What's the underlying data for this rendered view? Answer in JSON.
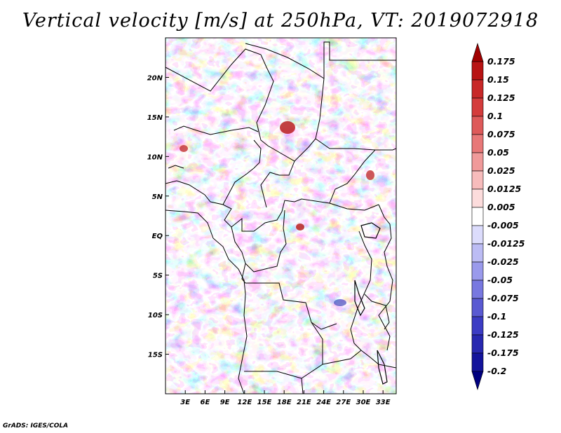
{
  "title": "Vertical velocity [m/s] at 250hPa, VT: 2019072918",
  "credit": "GrADS: IGES/COLA",
  "map": {
    "region": "Central Africa",
    "lon_range": [
      0,
      35
    ],
    "lat_range": [
      -20,
      25
    ],
    "x_ticks": [
      "3E",
      "6E",
      "9E",
      "12E",
      "15E",
      "18E",
      "21E",
      "24E",
      "27E",
      "30E",
      "33E"
    ],
    "y_ticks": [
      "20N",
      "15N",
      "10N",
      "5N",
      "EQ",
      "5S",
      "10S",
      "15S"
    ]
  },
  "colorbar": {
    "labels": [
      "0.175",
      "0.15",
      "0.125",
      "0.1",
      "0.075",
      "0.05",
      "0.025",
      "0.0125",
      "0.005",
      "-0.005",
      "-0.0125",
      "-0.025",
      "-0.05",
      "-0.075",
      "-0.1",
      "-0.125",
      "-0.175",
      "-0.2"
    ],
    "colors": [
      "#a00000",
      "#b81414",
      "#c82828",
      "#d43c3c",
      "#de5a5a",
      "#e87878",
      "#f09a9a",
      "#f7bcbc",
      "#fcdcdc",
      "#ffffff",
      "#dcdcfc",
      "#bcbcf4",
      "#9a9aec",
      "#7878e0",
      "#5a5ad2",
      "#3c3cc4",
      "#2828b0",
      "#14149c",
      "#000080"
    ]
  }
}
